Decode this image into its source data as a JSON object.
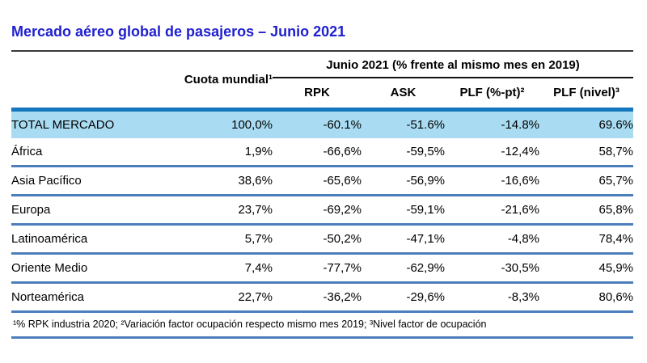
{
  "colors": {
    "title_blue": "#2020CF",
    "highlight_row_bg": "#A9DCF2",
    "highlight_row_top_border": "#1777BE",
    "row_separator_blue": "#4D7EBC",
    "header_rule_dark": "#3a3a3a"
  },
  "chart_data": {
    "type": "table",
    "title": "Mercado aéreo global de pasajeros – Junio 2021",
    "header": {
      "share": "Cuota mundial¹",
      "group": "Junio 2021 (% frente al mismo mes en 2019)",
      "value_columns": [
        "RPK",
        "ASK",
        "PLF (%-pt)²",
        "PLF (nivel)³"
      ]
    },
    "rows": [
      {
        "region": "TOTAL MERCADO",
        "share": "100,0%",
        "rpk": "-60.1%",
        "ask": "-51.6%",
        "plf_pt": "-14.8%",
        "plf_level": "69.6%"
      },
      {
        "region": "África",
        "share": "1,9%",
        "rpk": "-66,6%",
        "ask": "-59,5%",
        "plf_pt": "-12,4%",
        "plf_level": "58,7%"
      },
      {
        "region": "Asia Pacífico",
        "share": "38,6%",
        "rpk": "-65,6%",
        "ask": "-56,9%",
        "plf_pt": "-16,6%",
        "plf_level": "65,7%"
      },
      {
        "region": "Europa",
        "share": "23,7%",
        "rpk": "-69,2%",
        "ask": "-59,1%",
        "plf_pt": "-21,6%",
        "plf_level": "65,8%"
      },
      {
        "region": "Latinoamérica",
        "share": "5,7%",
        "rpk": "-50,2%",
        "ask": "-47,1%",
        "plf_pt": "-4,8%",
        "plf_level": "78,4%"
      },
      {
        "region": "Oriente Medio",
        "share": "7,4%",
        "rpk": "-77,7%",
        "ask": "-62,9%",
        "plf_pt": "-30,5%",
        "plf_level": "45,9%"
      },
      {
        "region": "Norteamérica",
        "share": "22,7%",
        "rpk": "-36,2%",
        "ask": "-29,6%",
        "plf_pt": "-8,3%",
        "plf_level": "80,6%"
      }
    ],
    "footnote": "¹% RPK industria 2020; ²Variación factor ocupación respecto mismo mes 2019; ³Nivel factor de ocupación"
  }
}
